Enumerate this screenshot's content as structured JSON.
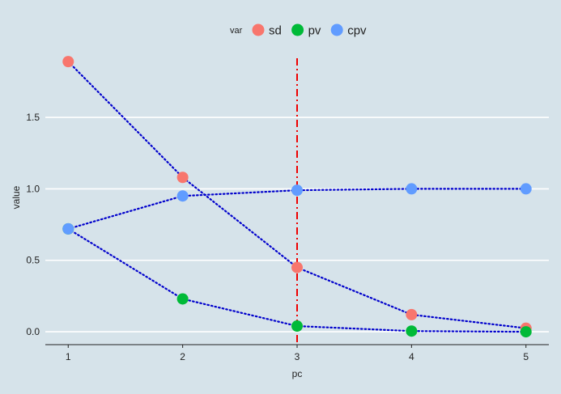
{
  "chart_data": {
    "type": "line",
    "xlabel": "pc",
    "ylabel": "value",
    "x": [
      1,
      2,
      3,
      4,
      5
    ],
    "x_ticks": [
      "1",
      "2",
      "3",
      "4",
      "5"
    ],
    "y_ticks": [
      "0.0",
      "0.5",
      "1.0",
      "1.5"
    ],
    "y_tick_values": [
      0,
      0.5,
      1.0,
      1.5
    ],
    "xlim": [
      0.8,
      5.2
    ],
    "ylim": [
      -0.09,
      1.97
    ],
    "legend": {
      "title": "var",
      "position": "top"
    },
    "series": [
      {
        "name": "sd",
        "color": "#F8766D",
        "values": [
          1.89,
          1.08,
          0.45,
          0.12,
          0.025
        ]
      },
      {
        "name": "pv",
        "color": "#00BA38",
        "values": [
          0.72,
          0.23,
          0.04,
          0.005,
          0.0
        ]
      },
      {
        "name": "cpv",
        "color": "#619CFF",
        "values": [
          0.72,
          0.95,
          0.99,
          1.0,
          1.0
        ]
      }
    ],
    "connector_color": "#0000CC",
    "vline": {
      "x": 3,
      "color": "#EE0000"
    },
    "grid": "horizontal-major"
  }
}
